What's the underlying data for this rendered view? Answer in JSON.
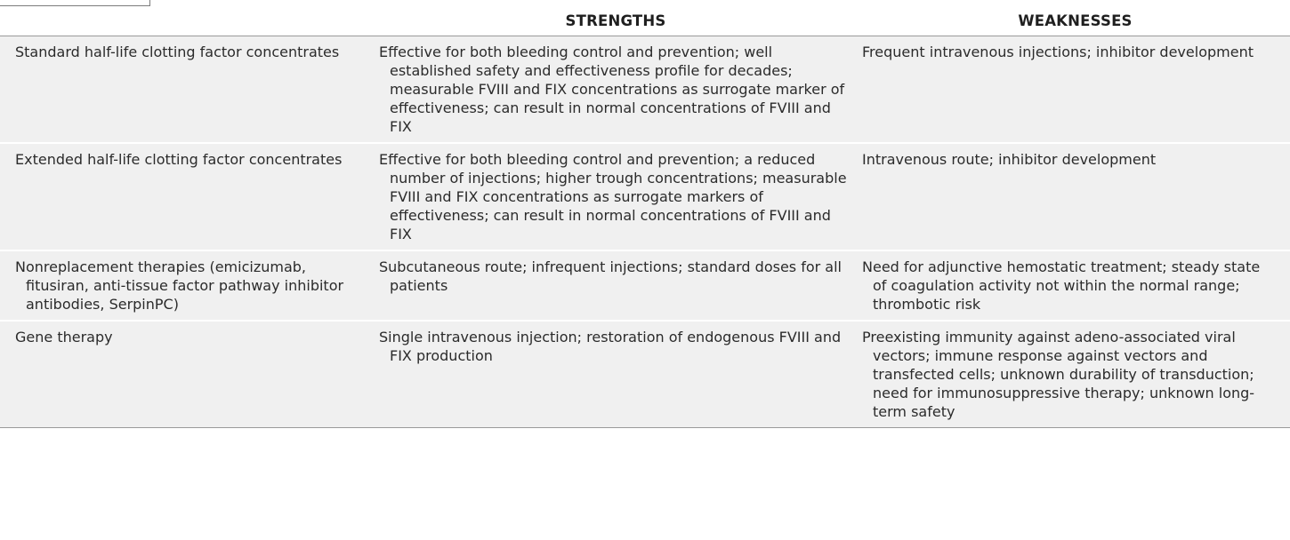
{
  "table": {
    "headers": [
      "",
      "STRENGTHS",
      "WEAKNESSES"
    ],
    "rows": [
      {
        "therapy": "Standard half-life clotting factor concentrates",
        "strengths": "Effective for both bleeding control and prevention; well established safety and effectiveness profile for decades; measurable FVIII and FIX concentrations as surrogate marker of effectiveness; can result in normal concentrations of FVIII and FIX",
        "weaknesses": "Frequent intravenous injections; inhibitor development"
      },
      {
        "therapy": "Extended half-life clotting factor concentrates",
        "strengths": "Effective for both bleeding control and prevention; a reduced number of injections; higher trough concentrations; measurable FVIII and FIX concentrations as surrogate markers of effectiveness; can result in normal concentrations of FVIII and FIX",
        "weaknesses": "Intravenous route; inhibitor development"
      },
      {
        "therapy": "Nonreplacement therapies (emicizumab, fitusiran, anti-tissue factor pathway inhibitor antibodies, SerpinPC)",
        "strengths": "Subcutaneous route; infrequent injections; standard doses for all patients",
        "weaknesses": "Need for adjunctive hemostatic treatment; steady state of coagulation activity not within the normal range; thrombotic risk"
      },
      {
        "therapy": "Gene therapy",
        "strengths": "Single intravenous injection; restoration of endogenous FVIII and FIX production",
        "weaknesses": "Preexisting immunity against adeno-associated viral vectors; immune response against vectors and transfected cells; unknown durability of transduction; need for immunosuppressive therapy; unknown long-term safety"
      }
    ]
  }
}
